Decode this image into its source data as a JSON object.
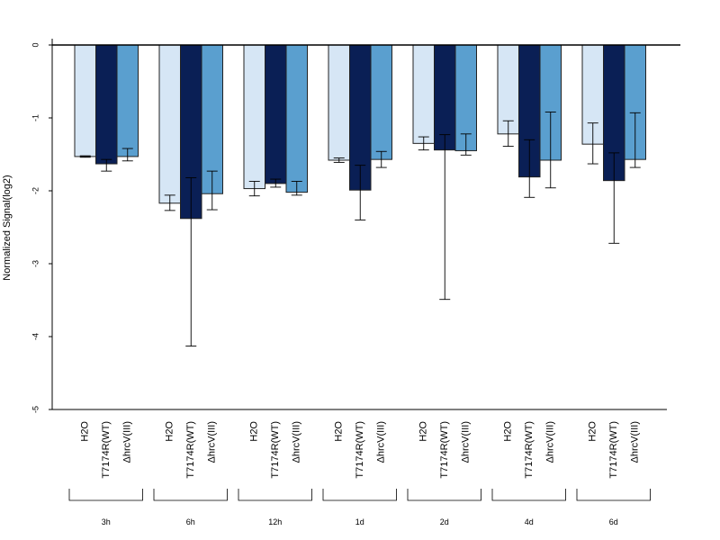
{
  "chart_data": {
    "type": "bar",
    "ylabel": "Normalized Signal(log2)",
    "ylim": [
      -5,
      0
    ],
    "yticks": [
      0,
      -1,
      -2,
      -3,
      -4,
      -5
    ],
    "grid": false,
    "series_names": [
      "H2O",
      "T7174R(WT)",
      "ΔhrcV(III)"
    ],
    "colors": [
      "#d6e6f5",
      "#0a1f55",
      "#5a9fcf"
    ],
    "groups": [
      {
        "label": "3h",
        "values": [
          -1.53,
          -1.63,
          -1.53
        ],
        "err_low": [
          -1.54,
          -1.73,
          -1.59
        ],
        "err_high": [
          -1.52,
          -1.57,
          -1.42
        ]
      },
      {
        "label": "6h",
        "values": [
          -2.17,
          -2.38,
          -2.04
        ],
        "err_low": [
          -2.27,
          -4.13,
          -2.26
        ],
        "err_high": [
          -2.06,
          -1.82,
          -1.73
        ]
      },
      {
        "label": "12h",
        "values": [
          -1.97,
          -1.9,
          -2.02
        ],
        "err_low": [
          -2.07,
          -1.95,
          -2.06
        ],
        "err_high": [
          -1.87,
          -1.84,
          -1.87
        ]
      },
      {
        "label": "1d",
        "values": [
          -1.58,
          -1.99,
          -1.57
        ],
        "err_low": [
          -1.61,
          -2.4,
          -1.68
        ],
        "err_high": [
          -1.55,
          -1.65,
          -1.46
        ]
      },
      {
        "label": "2d",
        "values": [
          -1.35,
          -1.44,
          -1.45
        ],
        "err_low": [
          -1.44,
          -3.49,
          -1.51
        ],
        "err_high": [
          -1.26,
          -1.23,
          -1.22
        ]
      },
      {
        "label": "4d",
        "values": [
          -1.22,
          -1.81,
          -1.58
        ],
        "err_low": [
          -1.39,
          -2.09,
          -1.96
        ],
        "err_high": [
          -1.04,
          -1.3,
          -0.92
        ]
      },
      {
        "label": "6d",
        "values": [
          -1.36,
          -1.86,
          -1.57
        ],
        "err_low": [
          -1.63,
          -2.72,
          -1.68
        ],
        "err_high": [
          -1.07,
          -1.48,
          -0.93
        ]
      }
    ]
  }
}
